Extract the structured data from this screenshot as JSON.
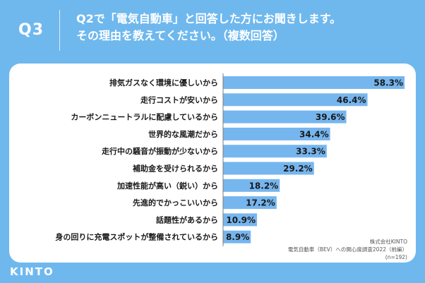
{
  "header": {
    "question_number": "Q3",
    "title_line1": "Q2で「電気自動車」と回答した方にお聞きします。",
    "title_line2": "その理由を教えてください。（複数回答）"
  },
  "source": {
    "company": "株式会社KINTO",
    "survey": "電気自動車（BEV）への関心度調査2022（前編）",
    "sample": "(n=192)"
  },
  "brand": {
    "logo_text": "KINTO"
  },
  "colors": {
    "background": "#6fb8ee",
    "bar": "#76b6ef",
    "panel": "#ffffff"
  },
  "chart_data": {
    "type": "bar",
    "orientation": "horizontal",
    "title": "Q2で「電気自動車」と回答した方にお聞きします。その理由を教えてください。（複数回答）",
    "categories": [
      "排気ガスなく環境に優しいから",
      "走行コストが安いから",
      "カーボンニュートラルに配慮しているから",
      "世界的な風潮だから",
      "走行中の騒音が振動が少ないから",
      "補助金を受けられるから",
      "加速性能が高い（鋭い）から",
      "先進的でかっこいいから",
      "話題性があるから",
      "身の回りに充電スポットが整備されているから"
    ],
    "values": [
      58.3,
      46.4,
      39.6,
      34.4,
      33.3,
      29.2,
      18.2,
      17.2,
      10.9,
      8.9
    ],
    "value_labels": [
      "58.3%",
      "46.4%",
      "39.6%",
      "34.4%",
      "33.3%",
      "29.2%",
      "18.2%",
      "17.2%",
      "10.9%",
      "8.9%"
    ],
    "unit": "%",
    "xlim": [
      0,
      58.3
    ],
    "grid": false,
    "legend": "none"
  }
}
